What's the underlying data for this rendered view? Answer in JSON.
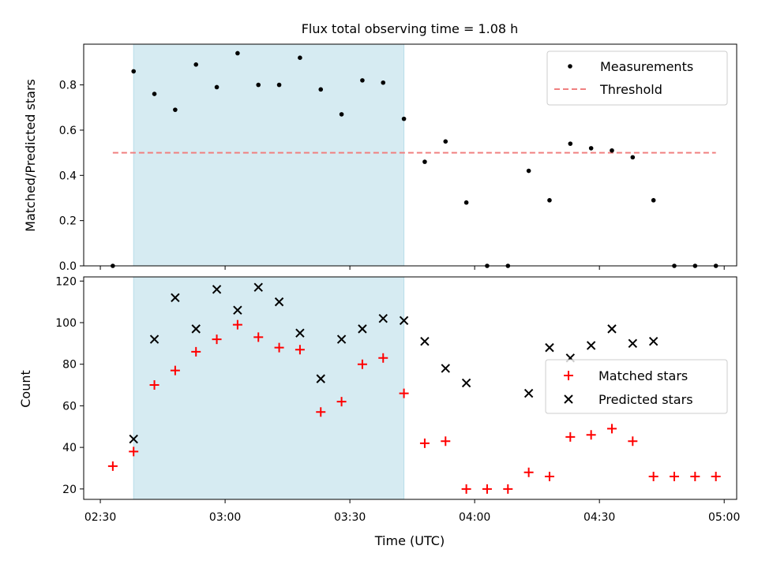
{
  "chart_data": [
    {
      "type": "scatter",
      "title": "Flux total observing time = 1.08 h",
      "ylabel": "Matched/Predicted stars",
      "xlabel": "",
      "ylim": [
        0,
        0.98
      ],
      "yticks": [
        "0.0",
        "0.2",
        "0.4",
        "0.6",
        "0.8"
      ],
      "ytick_values": [
        0,
        0.2,
        0.4,
        0.6,
        0.8
      ],
      "grid": false,
      "legend": "top-right",
      "shaded_interval": {
        "start": "02:38",
        "end": "03:43",
        "color": "#add8e6"
      },
      "threshold": {
        "name": "Threshold",
        "value": 0.5,
        "x_start": "02:33",
        "x_end": "04:58",
        "color": "#f08080"
      },
      "series": [
        {
          "name": "Measurements",
          "color": "#000000",
          "marker": "dot",
          "x": [
            "02:33",
            "02:38",
            "02:43",
            "02:48",
            "02:53",
            "02:58",
            "03:03",
            "03:08",
            "03:13",
            "03:18",
            "03:23",
            "03:28",
            "03:33",
            "03:38",
            "03:43",
            "03:48",
            "03:53",
            "03:58",
            "04:03",
            "04:08",
            "04:13",
            "04:18",
            "04:23",
            "04:28",
            "04:33",
            "04:38",
            "04:43",
            "04:48",
            "04:53",
            "04:58"
          ],
          "y": [
            0.0,
            0.86,
            0.76,
            0.69,
            0.89,
            0.79,
            0.94,
            0.8,
            0.8,
            0.92,
            0.78,
            0.67,
            0.82,
            0.81,
            0.65,
            0.46,
            0.55,
            0.28,
            0.0,
            0.0,
            0.42,
            0.29,
            0.54,
            0.52,
            0.51,
            0.48,
            0.29,
            0.0,
            0.0,
            0.0
          ]
        }
      ]
    },
    {
      "type": "scatter",
      "title": "",
      "ylabel": "Count",
      "xlabel": "Time (UTC)",
      "xlim": [
        "02:26",
        "05:03"
      ],
      "xticks": [
        "02:30",
        "03:00",
        "03:30",
        "04:00",
        "04:30",
        "05:00"
      ],
      "ylim": [
        15,
        122
      ],
      "yticks": [
        "20",
        "40",
        "60",
        "80",
        "100",
        "120"
      ],
      "ytick_values": [
        20,
        40,
        60,
        80,
        100,
        120
      ],
      "grid": false,
      "legend": "center-right",
      "shaded_interval": {
        "start": "02:38",
        "end": "03:43",
        "color": "#add8e6"
      },
      "series": [
        {
          "name": "Matched stars",
          "color": "#ff0000",
          "marker": "plus",
          "x": [
            "02:33",
            "02:38",
            "02:43",
            "02:48",
            "02:53",
            "02:58",
            "03:03",
            "03:08",
            "03:13",
            "03:18",
            "03:23",
            "03:28",
            "03:33",
            "03:38",
            "03:43",
            "03:48",
            "03:53",
            "03:58",
            "04:03",
            "04:08",
            "04:13",
            "04:18",
            "04:23",
            "04:28",
            "04:33",
            "04:38",
            "04:43",
            "04:48",
            "04:53",
            "04:58"
          ],
          "y": [
            31,
            38,
            70,
            77,
            86,
            92,
            99,
            93,
            88,
            87,
            57,
            62,
            80,
            83,
            66,
            42,
            43,
            20,
            20,
            20,
            28,
            26,
            45,
            46,
            49,
            43,
            26,
            26,
            26,
            26
          ]
        },
        {
          "name": "Predicted stars",
          "color": "#000000",
          "marker": "x",
          "x": [
            "02:38",
            "02:43",
            "02:48",
            "02:53",
            "02:58",
            "03:03",
            "03:08",
            "03:13",
            "03:18",
            "03:23",
            "03:28",
            "03:33",
            "03:38",
            "03:43",
            "03:48",
            "03:53",
            "03:58",
            "04:13",
            "04:18",
            "04:23",
            "04:28",
            "04:33",
            "04:38",
            "04:43"
          ],
          "y": [
            44,
            92,
            112,
            97,
            116,
            106,
            117,
            110,
            95,
            73,
            92,
            97,
            102,
            101,
            91,
            78,
            71,
            66,
            88,
            83,
            89,
            97,
            90,
            91
          ]
        }
      ]
    }
  ]
}
